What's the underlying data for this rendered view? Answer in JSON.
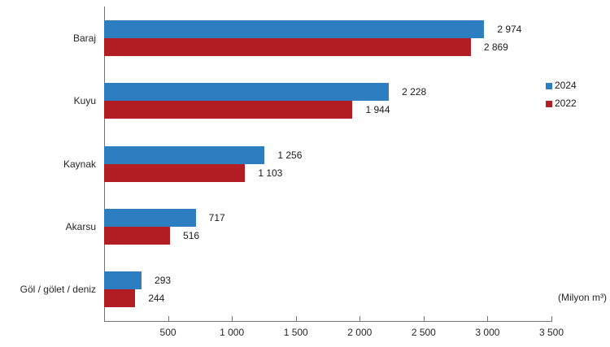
{
  "chart_data": {
    "type": "bar",
    "orientation": "horizontal",
    "title": "",
    "xlabel": "",
    "ylabel": "",
    "axis_note": "(Milyon m³)",
    "categories": [
      "Baraj",
      "Kuyu",
      "Kaynak",
      "Akarsu",
      "Göl / gölet / deniz"
    ],
    "series": [
      {
        "name": "2024",
        "color": "#2d7dc1",
        "values": [
          2974,
          2228,
          1256,
          717,
          293
        ],
        "value_labels": [
          "2 974",
          "2 228",
          "1 256",
          "717",
          "293"
        ]
      },
      {
        "name": "2022",
        "color": "#b21e23",
        "values": [
          2869,
          1944,
          1103,
          516,
          244
        ],
        "value_labels": [
          "2 869",
          "1 944",
          "1 103",
          "516",
          "244"
        ]
      }
    ],
    "xlim": [
      0,
      3500
    ],
    "x_ticks": [
      500,
      1000,
      1500,
      2000,
      2500,
      3000,
      3500
    ],
    "x_tick_labels": [
      "500",
      "1 000",
      "1 500",
      "2 000",
      "2 500",
      "3 000",
      "3 500"
    ],
    "grid": false,
    "legend_position": "right"
  }
}
